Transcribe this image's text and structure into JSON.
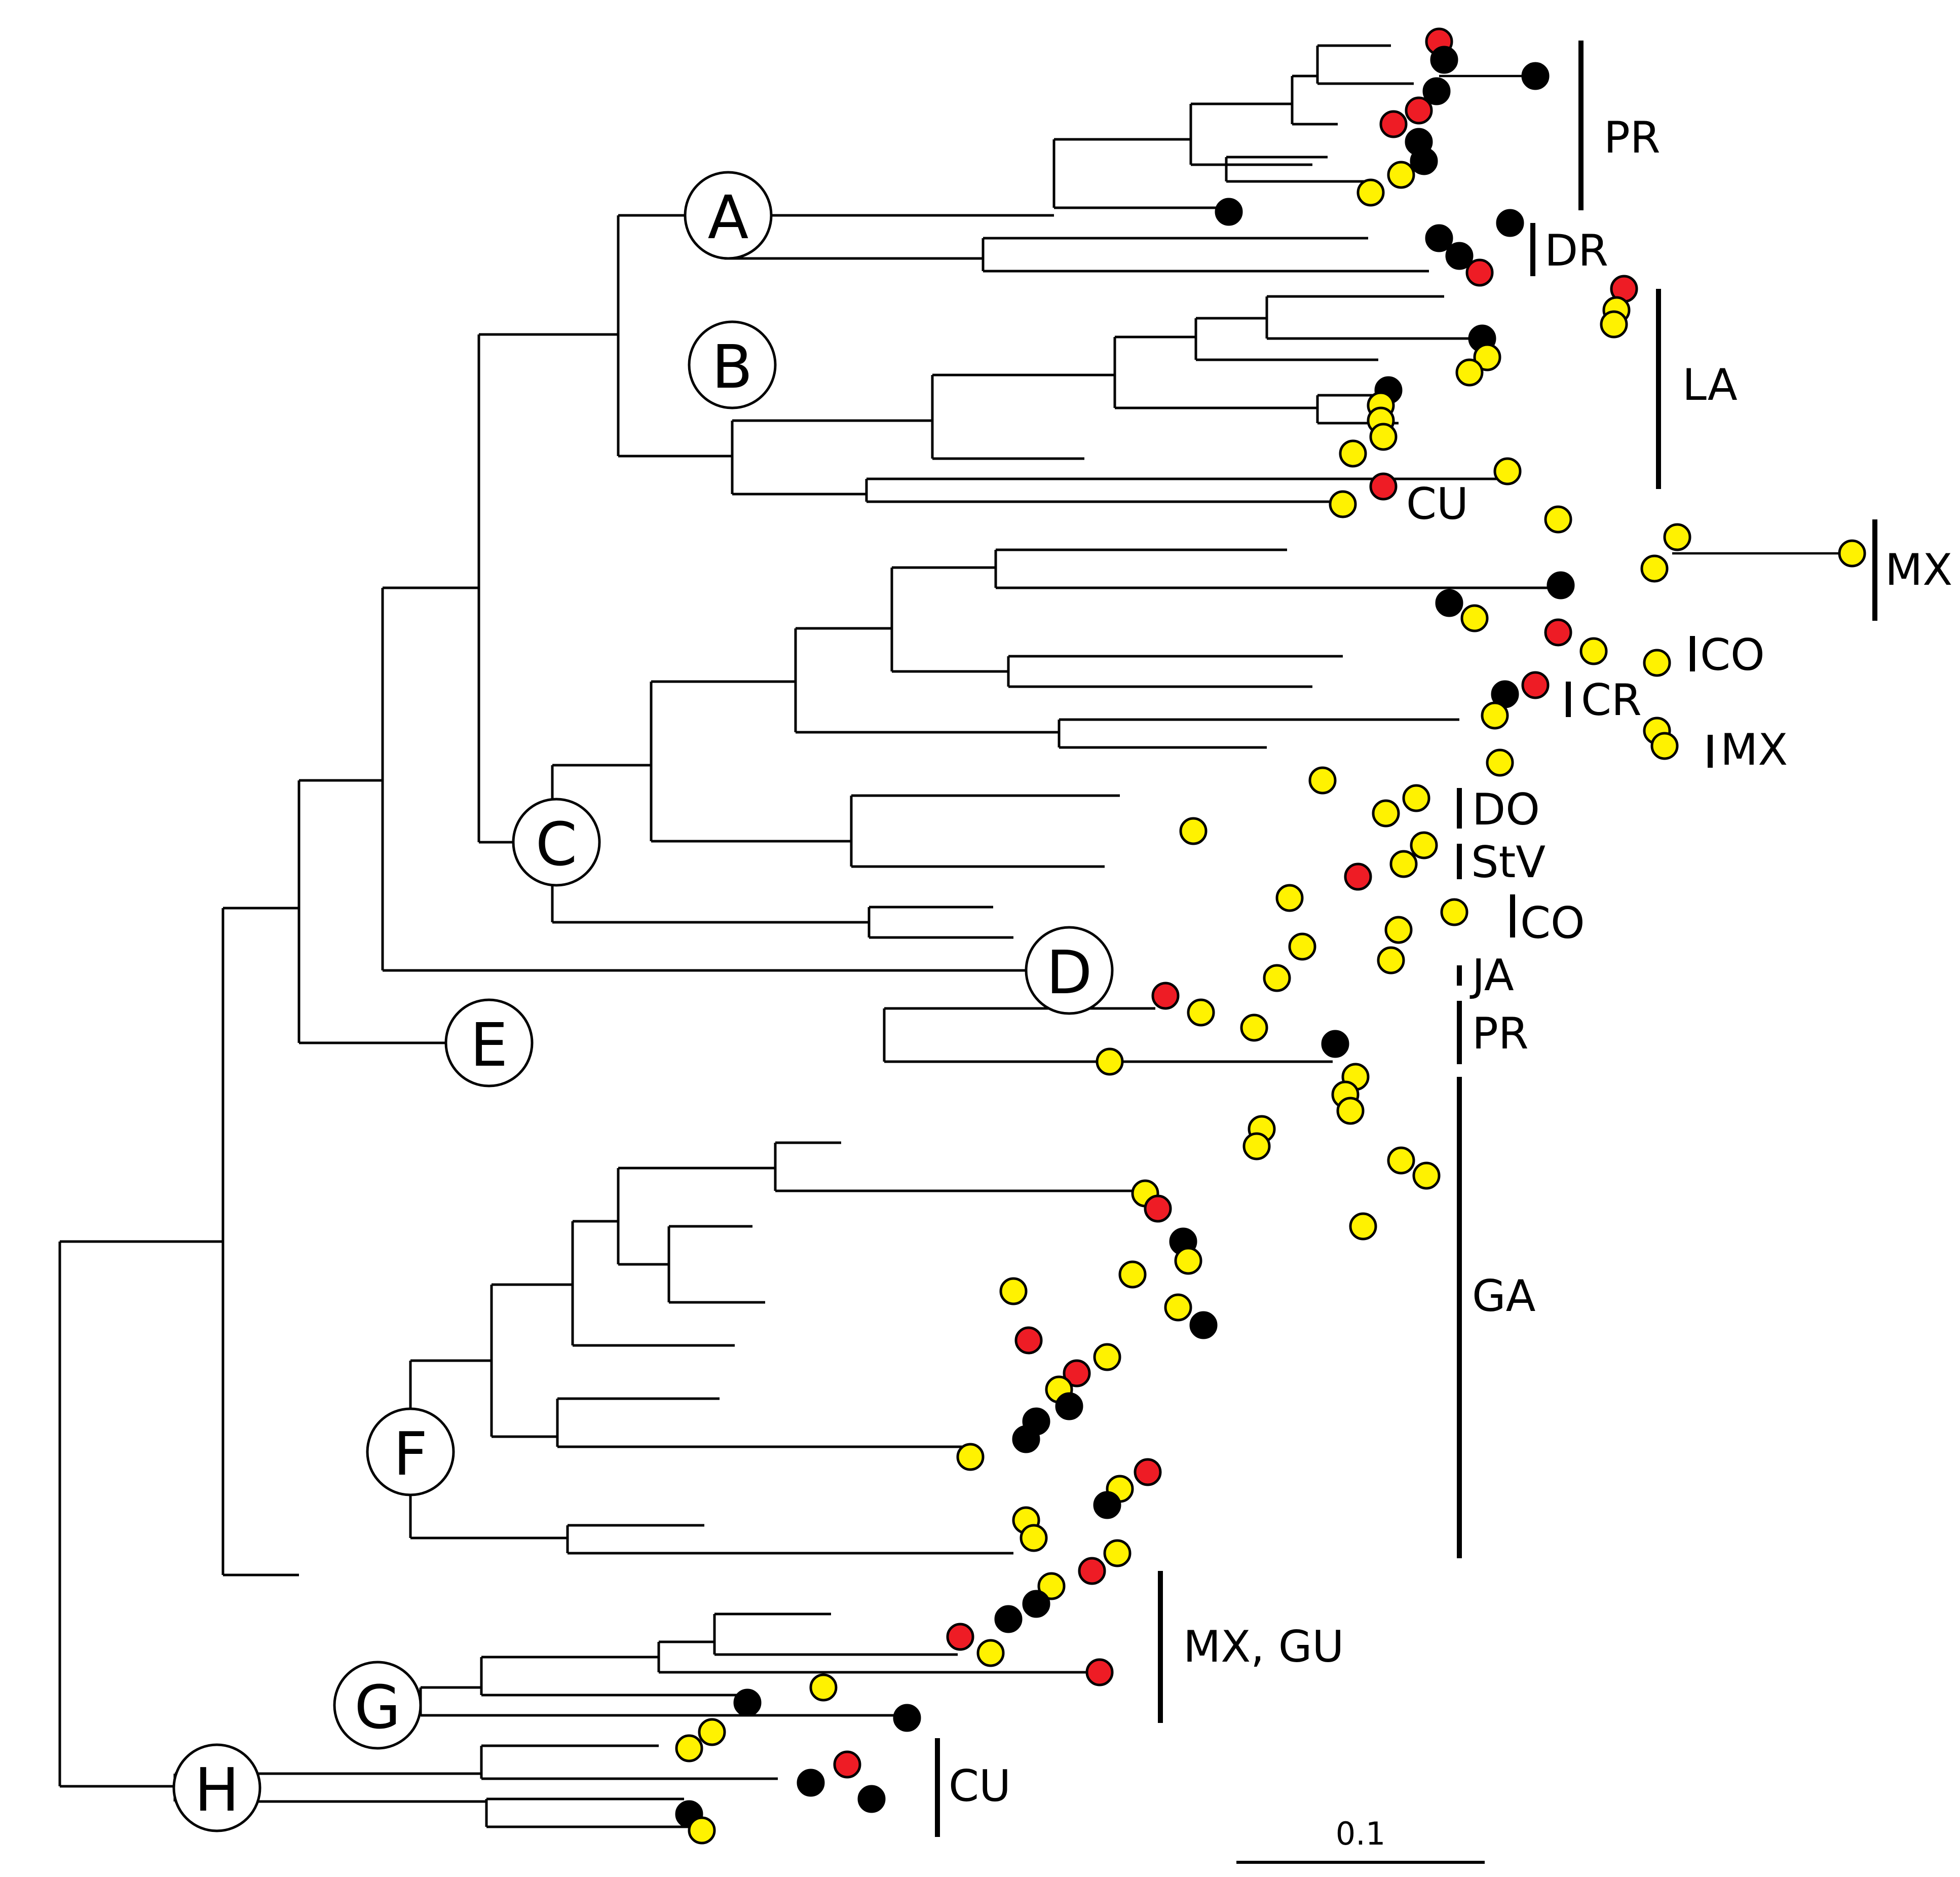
{
  "figure": {
    "type": "phylogenetic-tree",
    "tip_colors": {
      "red": "#ee1c25",
      "black": "#000000",
      "yellow": "#fff200"
    }
  },
  "nodes": [
    {
      "id": "A",
      "label": "A"
    },
    {
      "id": "B",
      "label": "B"
    },
    {
      "id": "C",
      "label": "C"
    },
    {
      "id": "D",
      "label": "D"
    },
    {
      "id": "E",
      "label": "E"
    },
    {
      "id": "F",
      "label": "F"
    },
    {
      "id": "G",
      "label": "G"
    },
    {
      "id": "H",
      "label": "H"
    }
  ],
  "clades": [
    {
      "id": "pr-a",
      "label": "PR"
    },
    {
      "id": "dr",
      "label": "DR"
    },
    {
      "id": "la",
      "label": "LA"
    },
    {
      "id": "cu-b",
      "label": "CU"
    },
    {
      "id": "mx-1",
      "label": "MX"
    },
    {
      "id": "co-1",
      "label": "CO"
    },
    {
      "id": "cr",
      "label": "CR"
    },
    {
      "id": "mx-2",
      "label": "MX"
    },
    {
      "id": "do",
      "label": "DO"
    },
    {
      "id": "stv",
      "label": "StV"
    },
    {
      "id": "co-2",
      "label": "CO"
    },
    {
      "id": "ja",
      "label": "JA"
    },
    {
      "id": "pr-e",
      "label": "PR"
    },
    {
      "id": "ga",
      "label": "GA"
    },
    {
      "id": "mx-gu",
      "label": "MX, GU"
    },
    {
      "id": "cu-h",
      "label": "CU"
    }
  ],
  "scale_bar": {
    "label": "0.1"
  }
}
